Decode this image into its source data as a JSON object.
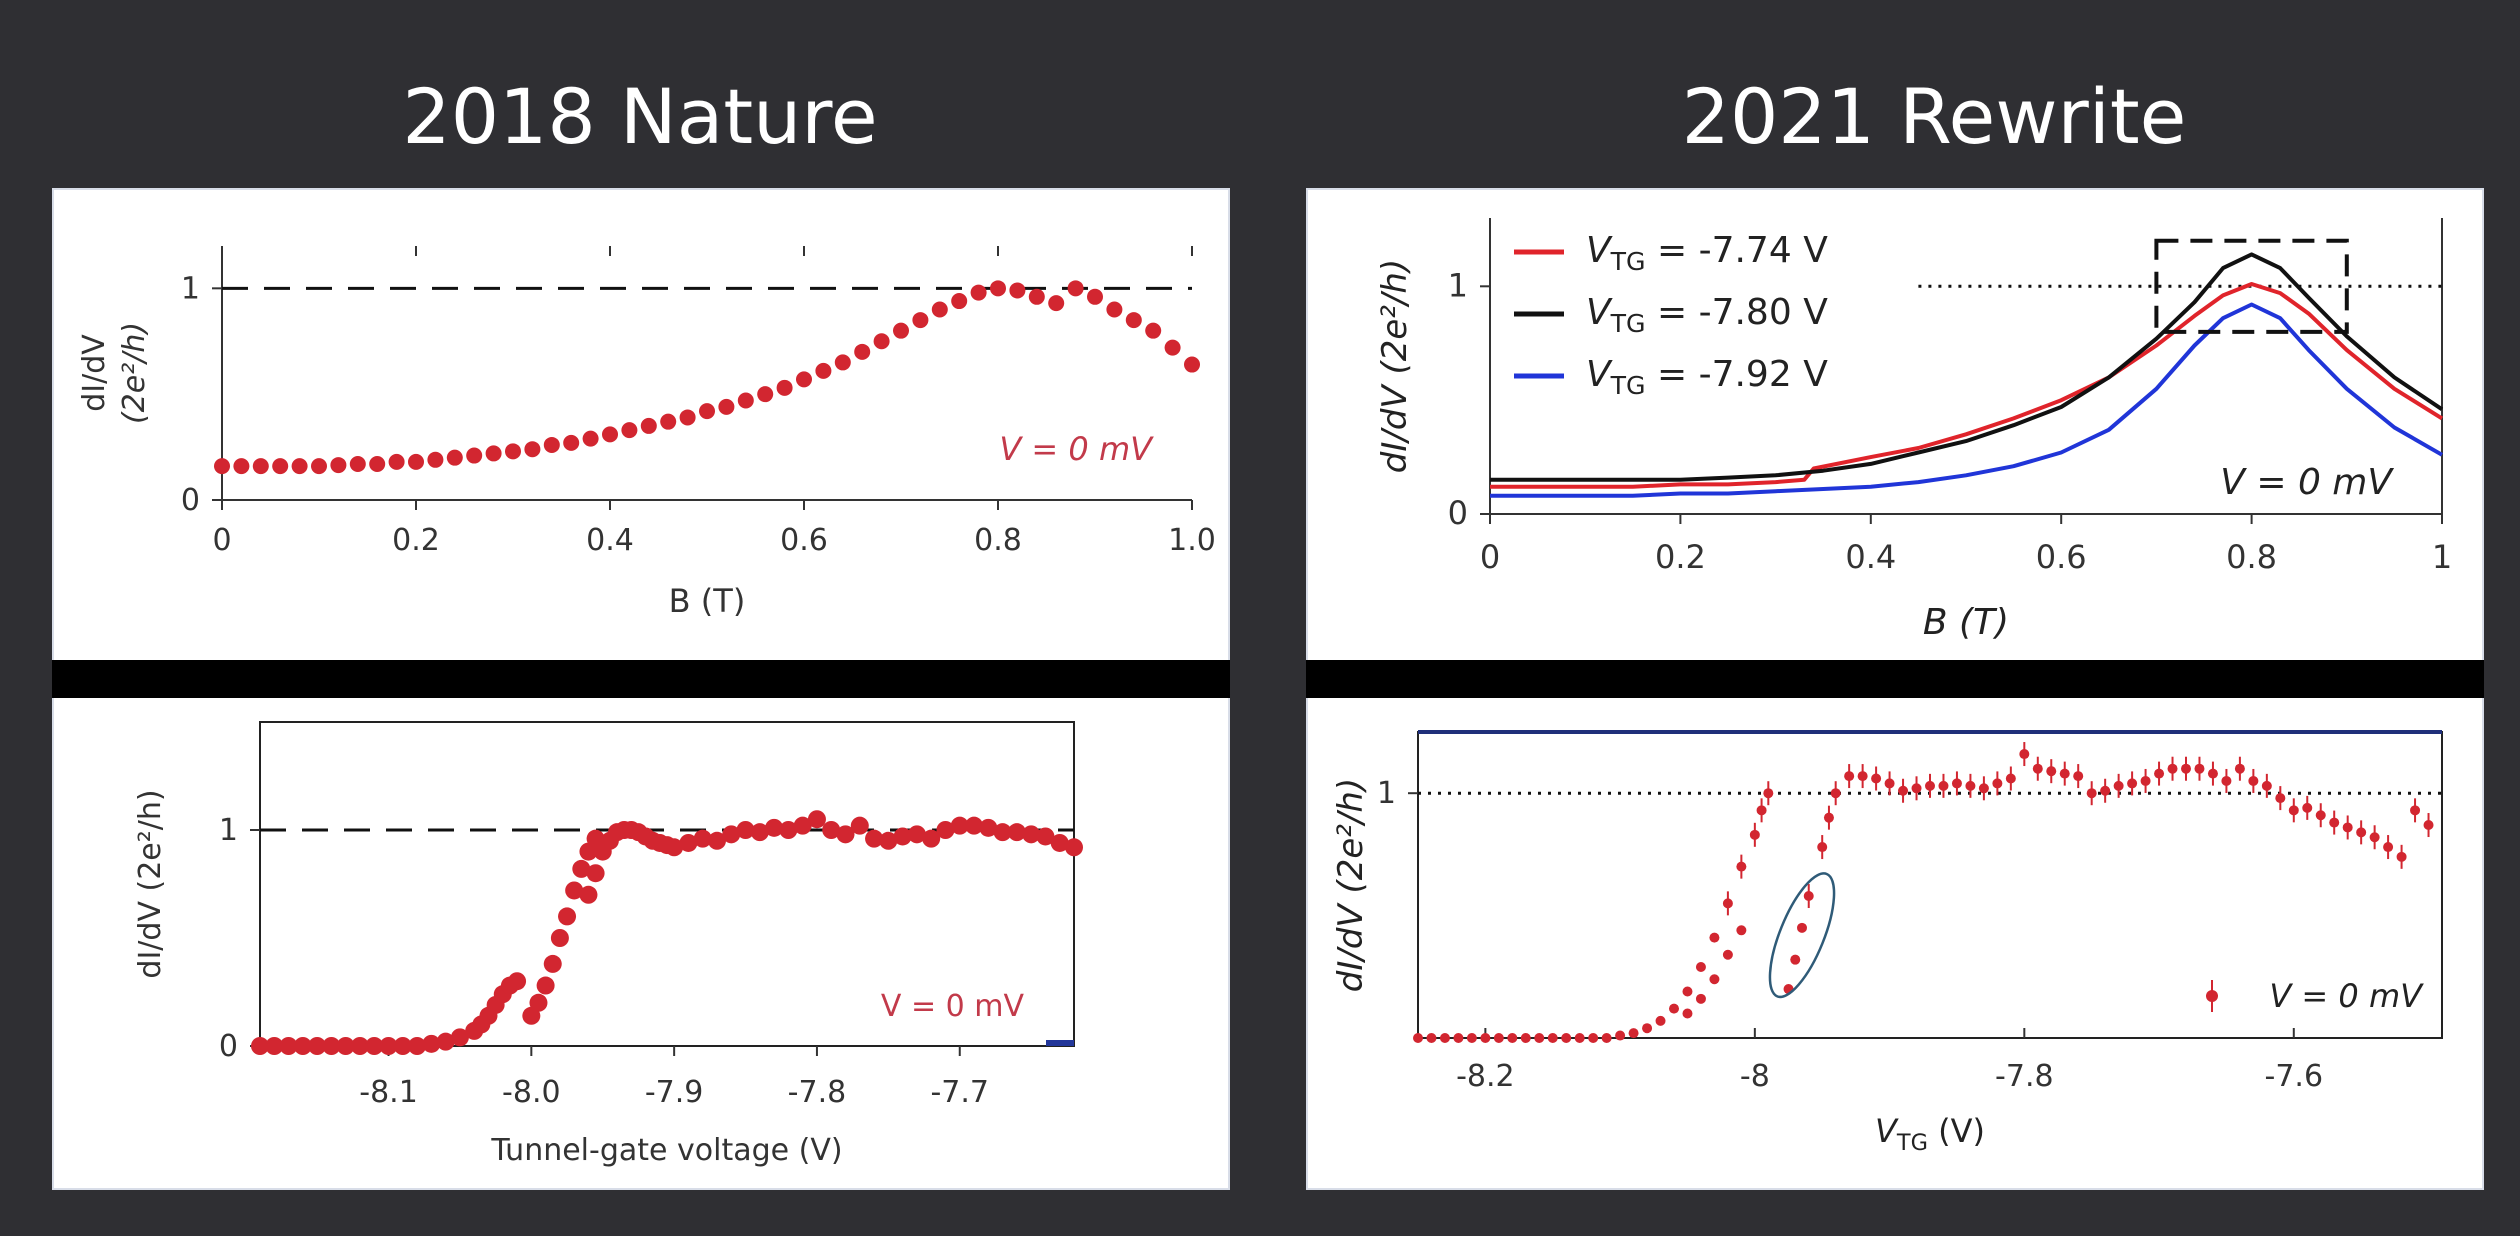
{
  "slide": {
    "title_left": "2018 Nature",
    "title_right": "2021 Rewrite"
  },
  "chart_data": [
    {
      "id": "nature-b",
      "type": "scatter",
      "xlabel": "B (T)",
      "ylabel": [
        "dI/dV",
        "(2e²/h)"
      ],
      "xlim": [
        0,
        1.0
      ],
      "ylim": [
        0,
        1.2
      ],
      "xticks": [
        "0",
        "0.2",
        "0.4",
        "0.6",
        "0.8",
        "1.0"
      ],
      "xtick_values": [
        0,
        0.2,
        0.4,
        0.6,
        0.8,
        1.0
      ],
      "yticks": [
        "0",
        "1"
      ],
      "ytick_values": [
        0,
        1
      ],
      "reference_line_y": 1,
      "annotation": "V = 0 mV",
      "color": "#d22630",
      "x": [
        0.0,
        0.02,
        0.04,
        0.06,
        0.08,
        0.1,
        0.12,
        0.14,
        0.16,
        0.18,
        0.2,
        0.22,
        0.24,
        0.26,
        0.28,
        0.3,
        0.32,
        0.34,
        0.36,
        0.38,
        0.4,
        0.42,
        0.44,
        0.46,
        0.48,
        0.5,
        0.52,
        0.54,
        0.56,
        0.58,
        0.6,
        0.62,
        0.64,
        0.66,
        0.68,
        0.7,
        0.72,
        0.74,
        0.76,
        0.78,
        0.8,
        0.82,
        0.84,
        0.86,
        0.88,
        0.9,
        0.92,
        0.94,
        0.96,
        0.98,
        1.0
      ],
      "y": [
        0.16,
        0.16,
        0.16,
        0.16,
        0.16,
        0.16,
        0.165,
        0.17,
        0.17,
        0.18,
        0.18,
        0.19,
        0.2,
        0.21,
        0.22,
        0.23,
        0.24,
        0.26,
        0.27,
        0.29,
        0.31,
        0.33,
        0.35,
        0.37,
        0.39,
        0.42,
        0.44,
        0.47,
        0.5,
        0.53,
        0.57,
        0.61,
        0.65,
        0.7,
        0.75,
        0.8,
        0.85,
        0.9,
        0.94,
        0.98,
        1.0,
        0.99,
        0.96,
        0.93,
        1.0,
        0.96,
        0.9,
        0.85,
        0.8,
        0.72,
        0.64
      ]
    },
    {
      "id": "nature-vtg",
      "type": "scatter",
      "xlabel": "Tunnel-gate voltage (V)",
      "ylabel": [
        "dI/dV (2e²/h)"
      ],
      "xlim": [
        -8.19,
        -7.62
      ],
      "ylim": [
        0,
        1.5
      ],
      "xticks": [
        "-8.1",
        "-8.0",
        "-7.9",
        "-7.8",
        "-7.7"
      ],
      "xtick_values": [
        -8.1,
        -8.0,
        -7.9,
        -7.8,
        -7.7
      ],
      "yticks": [
        "0",
        "1"
      ],
      "ytick_values": [
        0,
        1
      ],
      "reference_line_y": 1,
      "annotation": "V = 0 mV",
      "color": "#d22630",
      "series": [
        {
          "x": [
            -8.19,
            -8.18,
            -8.17,
            -8.16,
            -8.15,
            -8.14,
            -8.13,
            -8.12,
            -8.11,
            -8.1,
            -8.09,
            -8.08,
            -8.07,
            -8.06,
            -8.05,
            -8.04,
            -8.035,
            -8.03,
            -8.025,
            -8.02,
            -8.015,
            -8.01
          ],
          "y": [
            0.0,
            0.0,
            0.0,
            0.0,
            0.0,
            0.0,
            0.0,
            0.0,
            0.0,
            0.0,
            0.0,
            0.0,
            0.01,
            0.02,
            0.04,
            0.07,
            0.1,
            0.14,
            0.19,
            0.24,
            0.28,
            0.3
          ]
        },
        {
          "x": [
            -8.0,
            -7.995,
            -7.99,
            -7.985,
            -7.98,
            -7.975,
            -7.97,
            -7.965,
            -7.96,
            -7.955
          ],
          "y": [
            0.14,
            0.2,
            0.28,
            0.38,
            0.5,
            0.6,
            0.72,
            0.82,
            0.9,
            0.96
          ]
        },
        {
          "x": [
            -7.96,
            -7.955,
            -7.95,
            -7.945,
            -7.94,
            -7.935,
            -7.93,
            -7.925,
            -7.92,
            -7.915,
            -7.91,
            -7.905,
            -7.9,
            -7.89,
            -7.88,
            -7.87,
            -7.86,
            -7.85,
            -7.84,
            -7.83,
            -7.82,
            -7.81,
            -7.8,
            -7.79,
            -7.78,
            -7.77,
            -7.76,
            -7.75,
            -7.74,
            -7.73,
            -7.72,
            -7.71,
            -7.7,
            -7.69,
            -7.68,
            -7.67,
            -7.66,
            -7.65,
            -7.64,
            -7.63,
            -7.62
          ],
          "y": [
            0.7,
            0.8,
            0.9,
            0.95,
            0.99,
            1.0,
            1.0,
            0.99,
            0.97,
            0.95,
            0.94,
            0.93,
            0.92,
            0.94,
            0.96,
            0.95,
            0.98,
            1.0,
            0.99,
            1.01,
            1.0,
            1.02,
            1.05,
            1.0,
            0.98,
            1.02,
            0.96,
            0.95,
            0.97,
            0.98,
            0.96,
            1.0,
            1.02,
            1.02,
            1.01,
            0.99,
            0.99,
            0.98,
            0.97,
            0.94,
            0.92
          ]
        }
      ]
    },
    {
      "id": "rewrite-b",
      "type": "line",
      "xlabel": "B (T)",
      "ylabel": [
        "dI/dV (2e²/h)"
      ],
      "xlim": [
        0,
        1
      ],
      "ylim": [
        0,
        1.3
      ],
      "xticks": [
        "0",
        "0.2",
        "0.4",
        "0.6",
        "0.8",
        "1"
      ],
      "xtick_values": [
        0,
        0.2,
        0.4,
        0.6,
        0.8,
        1
      ],
      "yticks": [
        "0",
        "1"
      ],
      "ytick_values": [
        0,
        1
      ],
      "reference_line_y": 1,
      "annotation": "V = 0 mV",
      "highlight_box": {
        "x": [
          0.7,
          0.9
        ],
        "y": [
          0.8,
          1.2
        ]
      },
      "legend_position": "top-left",
      "series": [
        {
          "name": "V_TG = -7.74 V",
          "color": "#e0242b",
          "x": [
            0,
            0.05,
            0.1,
            0.15,
            0.2,
            0.25,
            0.3,
            0.33,
            0.34,
            0.4,
            0.45,
            0.5,
            0.55,
            0.6,
            0.65,
            0.7,
            0.74,
            0.77,
            0.8,
            0.83,
            0.86,
            0.9,
            0.95,
            1.0
          ],
          "y": [
            0.12,
            0.12,
            0.12,
            0.12,
            0.13,
            0.13,
            0.14,
            0.15,
            0.2,
            0.25,
            0.29,
            0.35,
            0.42,
            0.5,
            0.6,
            0.74,
            0.87,
            0.96,
            1.01,
            0.97,
            0.88,
            0.72,
            0.55,
            0.42
          ]
        },
        {
          "name": "V_TG = -7.80 V",
          "color": "#111111",
          "x": [
            0,
            0.05,
            0.1,
            0.15,
            0.2,
            0.25,
            0.3,
            0.35,
            0.4,
            0.45,
            0.5,
            0.55,
            0.6,
            0.65,
            0.7,
            0.74,
            0.77,
            0.8,
            0.83,
            0.86,
            0.9,
            0.95,
            1.0
          ],
          "y": [
            0.15,
            0.15,
            0.15,
            0.15,
            0.15,
            0.16,
            0.17,
            0.19,
            0.22,
            0.27,
            0.32,
            0.39,
            0.47,
            0.6,
            0.77,
            0.93,
            1.08,
            1.14,
            1.08,
            0.95,
            0.78,
            0.6,
            0.46
          ]
        },
        {
          "name": "V_TG = -7.92 V",
          "color": "#2035d8",
          "x": [
            0,
            0.05,
            0.1,
            0.15,
            0.2,
            0.25,
            0.3,
            0.35,
            0.4,
            0.45,
            0.5,
            0.55,
            0.6,
            0.65,
            0.7,
            0.74,
            0.77,
            0.8,
            0.83,
            0.86,
            0.9,
            0.95,
            1.0
          ],
          "y": [
            0.08,
            0.08,
            0.08,
            0.08,
            0.09,
            0.09,
            0.1,
            0.11,
            0.12,
            0.14,
            0.17,
            0.21,
            0.27,
            0.37,
            0.55,
            0.74,
            0.86,
            0.92,
            0.86,
            0.72,
            0.55,
            0.38,
            0.26
          ]
        }
      ]
    },
    {
      "id": "rewrite-vtg",
      "type": "scatter",
      "xlabel": "V_TG (V)",
      "ylabel": [
        "dI/dV (2e²/h)"
      ],
      "xlim": [
        -8.25,
        -7.49
      ],
      "ylim": [
        0,
        1.25
      ],
      "xticks": [
        "-8.2",
        "-8",
        "-7.8",
        "-7.6"
      ],
      "xtick_values": [
        -8.2,
        -8.0,
        -7.8,
        -7.6
      ],
      "yticks": [
        "1"
      ],
      "ytick_values": [
        1
      ],
      "reference_line_y": 1,
      "annotation": "V = 0 mV",
      "color": "#d22630",
      "series": [
        {
          "x": [
            -8.25,
            -8.24,
            -8.23,
            -8.22,
            -8.21,
            -8.2,
            -8.19,
            -8.18,
            -8.17,
            -8.16,
            -8.15,
            -8.14,
            -8.13,
            -8.12,
            -8.11,
            -8.1,
            -8.09,
            -8.08,
            -8.07,
            -8.06,
            -8.05,
            -8.04,
            -8.03,
            -8.02,
            -8.01,
            -8.0,
            -7.995,
            -7.99
          ],
          "y": [
            0.0,
            0.0,
            0.0,
            0.0,
            0.0,
            0.0,
            0.0,
            0.0,
            0.0,
            0.0,
            0.0,
            0.0,
            0.0,
            0.0,
            0.0,
            0.01,
            0.02,
            0.04,
            0.07,
            0.12,
            0.19,
            0.29,
            0.41,
            0.55,
            0.7,
            0.83,
            0.93,
            1.0
          ]
        },
        {
          "x": [
            -8.05,
            -8.04,
            -8.03,
            -8.02,
            -8.01,
            -7.975,
            -7.97,
            -7.965,
            -7.96,
            -7.95,
            -7.945,
            -7.94
          ],
          "y": [
            0.1,
            0.16,
            0.24,
            0.34,
            0.44,
            0.2,
            0.32,
            0.45,
            0.58,
            0.78,
            0.9,
            1.0
          ]
        },
        {
          "x": [
            -7.93,
            -7.92,
            -7.91,
            -7.9,
            -7.89,
            -7.88,
            -7.87,
            -7.86,
            -7.85,
            -7.84,
            -7.83,
            -7.82,
            -7.81,
            -7.8,
            -7.79,
            -7.78,
            -7.77,
            -7.76,
            -7.75,
            -7.74,
            -7.73,
            -7.72,
            -7.71,
            -7.7,
            -7.69,
            -7.68,
            -7.67,
            -7.66,
            -7.65,
            -7.64,
            -7.63,
            -7.62,
            -7.61,
            -7.6,
            -7.59,
            -7.58,
            -7.57,
            -7.56,
            -7.55,
            -7.54,
            -7.53,
            -7.52,
            -7.51,
            -7.5
          ],
          "y": [
            1.07,
            1.07,
            1.06,
            1.04,
            1.01,
            1.02,
            1.03,
            1.03,
            1.04,
            1.03,
            1.02,
            1.04,
            1.06,
            1.16,
            1.1,
            1.09,
            1.08,
            1.07,
            1.0,
            1.01,
            1.03,
            1.04,
            1.05,
            1.08,
            1.1,
            1.1,
            1.1,
            1.08,
            1.05,
            1.1,
            1.05,
            1.03,
            0.98,
            0.93,
            0.94,
            0.91,
            0.88,
            0.86,
            0.84,
            0.82,
            0.78,
            0.74,
            0.93,
            0.87
          ]
        }
      ],
      "highlight_ellipse": {
        "cx": -7.965,
        "cy": 0.42
      }
    }
  ]
}
